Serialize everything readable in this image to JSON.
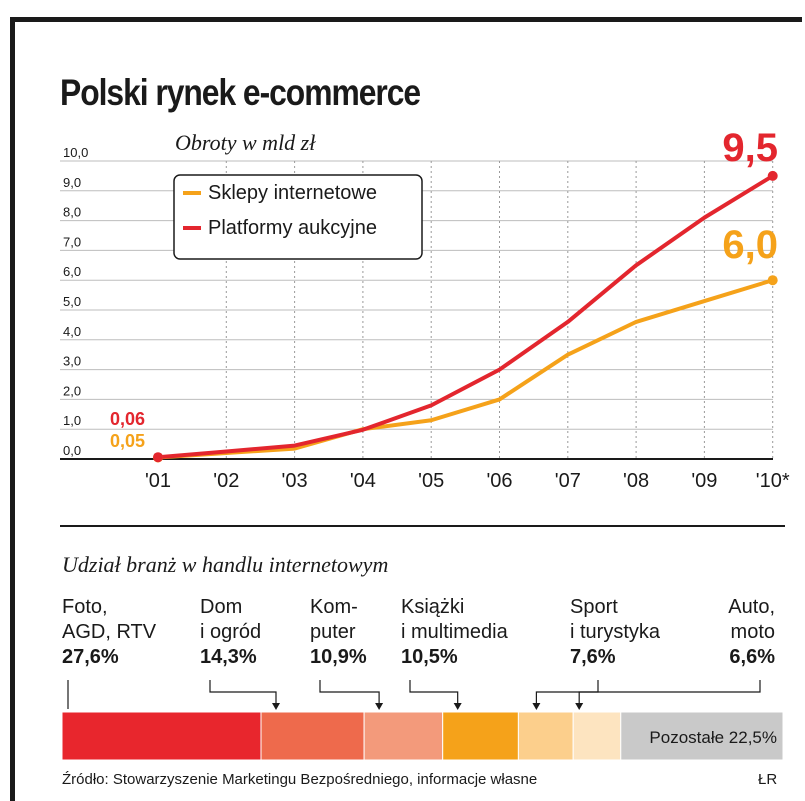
{
  "title": "Polski rynek e-commerce",
  "chart_data": {
    "type": "line",
    "title": "Polski rynek e-commerce",
    "subtitle": "Obroty w mld zł",
    "ylabel": "Obroty w mld zł",
    "ylim": [
      0,
      10
    ],
    "yticks": [
      "0,0",
      "1,0",
      "2,0",
      "3,0",
      "4,0",
      "5,0",
      "6,0",
      "7,0",
      "8,0",
      "9,0",
      "10,0"
    ],
    "categories": [
      "'01",
      "'02",
      "'03",
      "'04",
      "'05",
      "'06",
      "'07",
      "'08",
      "'09",
      "'10*"
    ],
    "grid": true,
    "legend_position": "top-left",
    "series": [
      {
        "name": "Sklepy internetowe",
        "color": "#f5a21a",
        "values": [
          0.05,
          0.2,
          0.35,
          1.0,
          1.3,
          2.0,
          3.5,
          4.6,
          5.3,
          6.0
        ]
      },
      {
        "name": "Platformy aukcyjne",
        "color": "#e3262e",
        "values": [
          0.06,
          0.25,
          0.45,
          0.98,
          1.8,
          3.0,
          4.6,
          6.5,
          8.1,
          9.5
        ]
      }
    ],
    "annotations": {
      "start_red": "0,06",
      "start_orange": "0,05",
      "end_red": "9,5",
      "end_orange": "6,0"
    }
  },
  "shares": {
    "title": "Udział branż w handlu internetowym",
    "categories": [
      {
        "lines": [
          "Foto,",
          "AGD, RTV"
        ],
        "pct": "27,6%",
        "value": 27.6,
        "color": "#e8262d"
      },
      {
        "lines": [
          "Dom",
          "i ogród"
        ],
        "pct": "14,3%",
        "value": 14.3,
        "color": "#ee6a4c"
      },
      {
        "lines": [
          "Kom-",
          "puter"
        ],
        "pct": "10,9%",
        "value": 10.9,
        "color": "#f39a7b"
      },
      {
        "lines": [
          "Książki",
          "i multimedia"
        ],
        "pct": "10,5%",
        "value": 10.5,
        "color": "#f5a21a"
      },
      {
        "lines": [
          "Sport",
          "i turystyka"
        ],
        "pct": "7,6%",
        "value": 7.6,
        "color": "#fccf8c"
      },
      {
        "lines": [
          "Auto,",
          "moto"
        ],
        "pct": "6,6%",
        "value": 6.6,
        "color": "#fde4c0"
      }
    ],
    "other_label": "Pozostałe 22,5%",
    "other_value": 22.5,
    "other_color": "#c9c9c9"
  },
  "source": "Źródło: Stowarzyszenie Marketingu Bezpośredniego, informacje własne",
  "credit": "ŁR"
}
